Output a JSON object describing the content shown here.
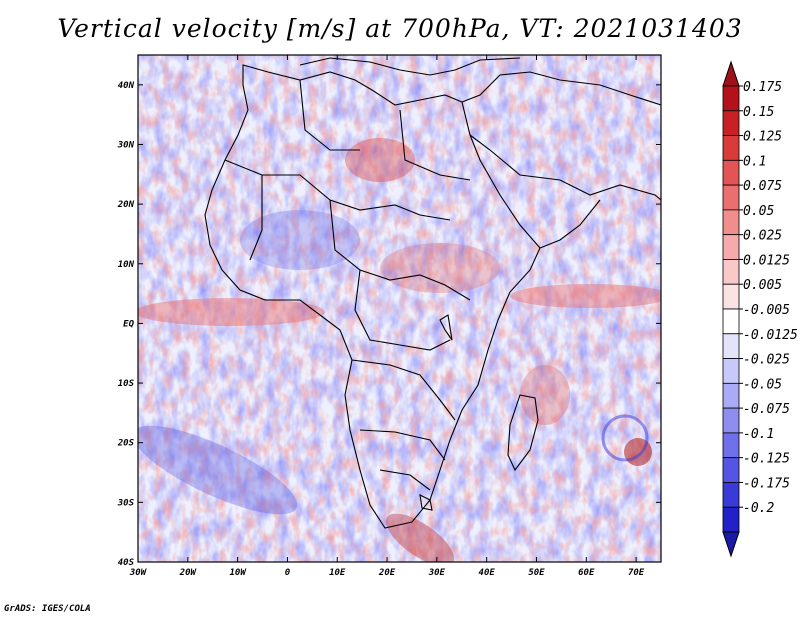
{
  "title": "Vertical velocity [m/s] at 700hPa, VT: 2021031403",
  "footer": "GrADS: IGES/COLA",
  "map": {
    "lat_ticks": [
      {
        "label": "40N",
        "lat": 40
      },
      {
        "label": "30N",
        "lat": 30
      },
      {
        "label": "20N",
        "lat": 20
      },
      {
        "label": "10N",
        "lat": 10
      },
      {
        "label": "EQ",
        "lat": 0
      },
      {
        "label": "10S",
        "lat": -10
      },
      {
        "label": "20S",
        "lat": -20
      },
      {
        "label": "30S",
        "lat": -30
      },
      {
        "label": "40S",
        "lat": -40
      }
    ],
    "lon_ticks": [
      {
        "label": "30W",
        "lon": -30
      },
      {
        "label": "20W",
        "lon": -20
      },
      {
        "label": "10W",
        "lon": -10
      },
      {
        "label": "0",
        "lon": 0
      },
      {
        "label": "10E",
        "lon": 10
      },
      {
        "label": "20E",
        "lon": 20
      },
      {
        "label": "30E",
        "lon": 30
      },
      {
        "label": "40E",
        "lon": 40
      },
      {
        "label": "50E",
        "lon": 50
      },
      {
        "label": "60E",
        "lon": 60
      },
      {
        "label": "70E",
        "lon": 70
      }
    ],
    "lon_range": [
      -30,
      75
    ],
    "lat_range": [
      -40,
      45
    ]
  },
  "colorbar": {
    "levels": [
      {
        "label": "0.175",
        "color": "#b4111b"
      },
      {
        "label": "0.15",
        "color": "#c82125"
      },
      {
        "label": "0.125",
        "color": "#d93a3a"
      },
      {
        "label": "0.1",
        "color": "#e35555"
      },
      {
        "label": "0.075",
        "color": "#ea7070"
      },
      {
        "label": "0.05",
        "color": "#f08e8e"
      },
      {
        "label": "0.025",
        "color": "#f5abab"
      },
      {
        "label": "0.0125",
        "color": "#f9c8c8"
      },
      {
        "label": "0.005",
        "color": "#fce3e3"
      },
      {
        "label": "-0.005",
        "color": "#ffffff"
      },
      {
        "label": "-0.0125",
        "color": "#e3e3fc"
      },
      {
        "label": "-0.025",
        "color": "#c8c8f9"
      },
      {
        "label": "-0.05",
        "color": "#ababf5"
      },
      {
        "label": "-0.075",
        "color": "#8e8ef0"
      },
      {
        "label": "-0.1",
        "color": "#7070ea"
      },
      {
        "label": "-0.125",
        "color": "#5555e3"
      },
      {
        "label": "-0.175",
        "color": "#3a3ad9"
      },
      {
        "label": "-0.2",
        "color": "#2121c8"
      }
    ],
    "top_color": "#a01018",
    "bottom_color": "#1a1aa8"
  }
}
